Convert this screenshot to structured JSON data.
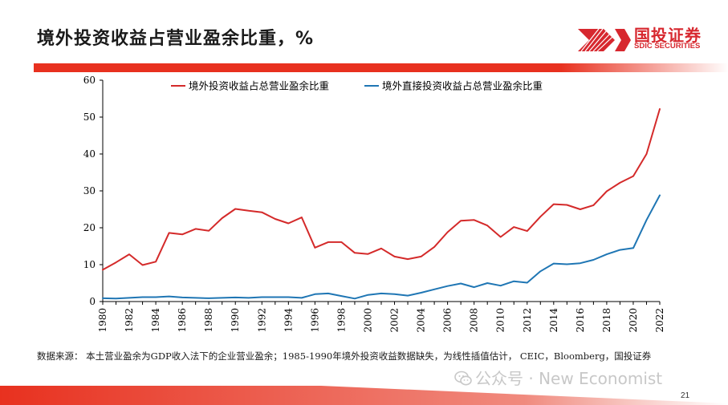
{
  "slide": {
    "title": "境外投资收益占营业盈余比重，%",
    "page_number": "21"
  },
  "logo": {
    "name_cn": "国投证券",
    "name_en": "SDIC SECURITIES",
    "color": "#d7282f"
  },
  "source_note": "数据来源： 本土营业盈余为GDP收入法下的企业营业盈余；1985-1990年境外投资收益数据缺失，为线性插值估计， CEIC，Bloomberg，国投证券",
  "watermark": {
    "text": "公众号 · New Economist",
    "icon": "wechat-icon"
  },
  "colors": {
    "accent_red": "#e8311f",
    "series_red": "#d42a2a",
    "series_blue": "#1f76b4"
  },
  "chart_data": {
    "type": "line",
    "title": "",
    "xlabel": "",
    "ylabel": "",
    "ylim": [
      0,
      60
    ],
    "yticks": [
      0,
      10,
      20,
      30,
      40,
      50,
      60
    ],
    "xlim": [
      1980,
      2022
    ],
    "xticks": [
      "1980",
      "1982",
      "1984",
      "1986",
      "1988",
      "1990",
      "1992",
      "1994",
      "1996",
      "1998",
      "2000",
      "2002",
      "2004",
      "2006",
      "2008",
      "2010",
      "2012",
      "2014",
      "2016",
      "2018",
      "2020",
      "2022"
    ],
    "grid": false,
    "legend_position": "top",
    "x": [
      1980,
      1981,
      1982,
      1983,
      1984,
      1985,
      1986,
      1987,
      1988,
      1989,
      1990,
      1991,
      1992,
      1993,
      1994,
      1995,
      1996,
      1997,
      1998,
      1999,
      2000,
      2001,
      2002,
      2003,
      2004,
      2005,
      2006,
      2007,
      2008,
      2009,
      2010,
      2011,
      2012,
      2013,
      2014,
      2015,
      2016,
      2017,
      2018,
      2019,
      2020,
      2021,
      2022
    ],
    "series": [
      {
        "name": "境外投资收益占总营业盈余比重",
        "color": "#d42a2a",
        "values": [
          8.6,
          10.6,
          12.8,
          9.9,
          10.8,
          18.6,
          18.2,
          19.7,
          19.2,
          22.6,
          25.1,
          24.6,
          24.2,
          22.4,
          21.2,
          22.8,
          14.6,
          16.1,
          16.1,
          13.2,
          12.9,
          14.4,
          12.2,
          11.5,
          12.2,
          14.8,
          18.8,
          21.9,
          22.1,
          20.6,
          17.5,
          20.2,
          19.1,
          23.0,
          26.4,
          26.2,
          25.0,
          26.1,
          29.9,
          32.2,
          34.0,
          40.0,
          52.2
        ]
      },
      {
        "name": "境外直接投资收益占总营业盈余比重",
        "color": "#1f76b4",
        "values": [
          0.9,
          0.8,
          1.0,
          1.2,
          1.2,
          1.4,
          1.1,
          1.0,
          0.9,
          1.0,
          1.1,
          1.0,
          1.2,
          1.2,
          1.2,
          1.0,
          2.0,
          2.2,
          1.5,
          0.8,
          1.8,
          2.2,
          2.0,
          1.6,
          2.4,
          3.3,
          4.2,
          4.9,
          3.9,
          5.0,
          4.3,
          5.5,
          5.1,
          8.2,
          10.3,
          10.1,
          10.4,
          11.3,
          12.8,
          14.0,
          14.5,
          22.1,
          28.8
        ]
      }
    ]
  }
}
